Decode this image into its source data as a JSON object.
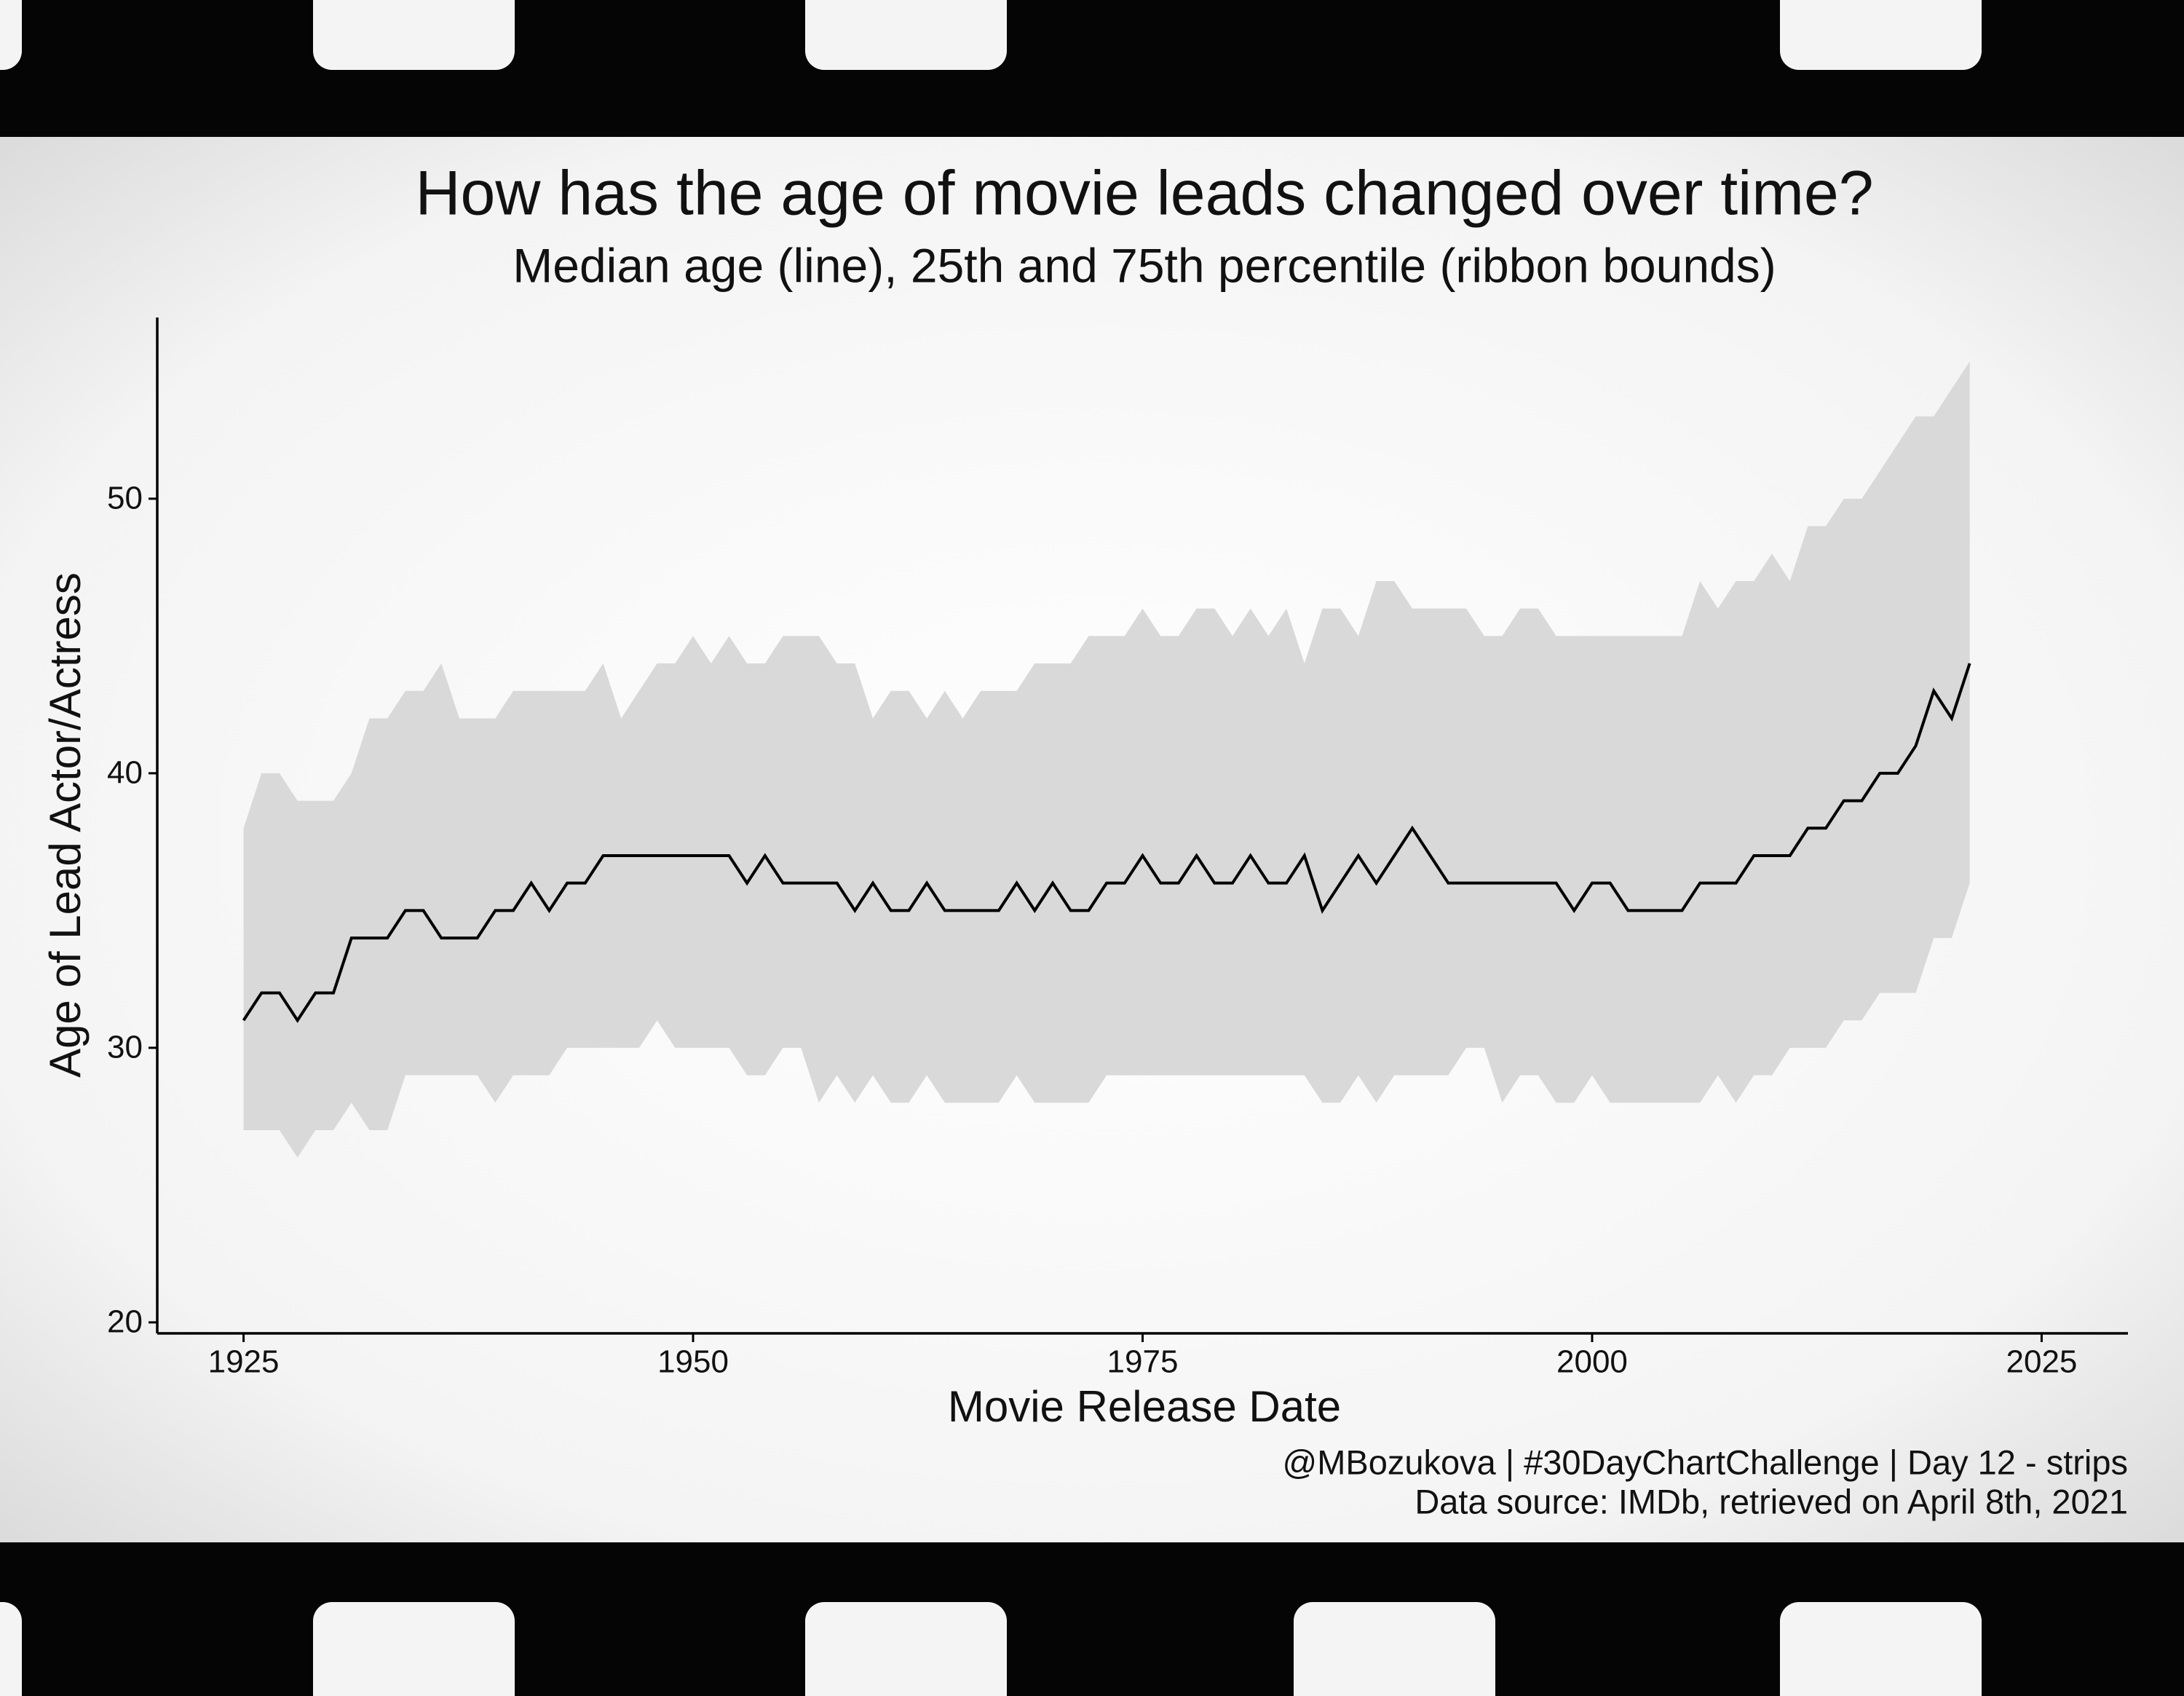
{
  "chart_data": {
    "type": "line",
    "title": "How has the age of movie leads changed over time?",
    "subtitle": "Median age (line), 25th and 75th percentile (ribbon bounds)",
    "x_label": "Movie Release Date",
    "y_label": "Age of Lead Actor/Actress",
    "caption": [
      "@MBozukova | #30DayChartChallenge | Day 12 - strips",
      "Data source: IMDb, retrieved on April 8th, 2021"
    ],
    "x": [
      1925,
      1926,
      1927,
      1928,
      1929,
      1930,
      1931,
      1932,
      1933,
      1934,
      1935,
      1936,
      1937,
      1938,
      1939,
      1940,
      1941,
      1942,
      1943,
      1944,
      1945,
      1946,
      1947,
      1948,
      1949,
      1950,
      1951,
      1952,
      1953,
      1954,
      1955,
      1956,
      1957,
      1958,
      1959,
      1960,
      1961,
      1962,
      1963,
      1964,
      1965,
      1966,
      1967,
      1968,
      1969,
      1970,
      1971,
      1972,
      1973,
      1974,
      1975,
      1976,
      1977,
      1978,
      1979,
      1980,
      1981,
      1982,
      1983,
      1984,
      1985,
      1986,
      1987,
      1988,
      1989,
      1990,
      1991,
      1992,
      1993,
      1994,
      1995,
      1996,
      1997,
      1998,
      1999,
      2000,
      2001,
      2002,
      2003,
      2004,
      2005,
      2006,
      2007,
      2008,
      2009,
      2010,
      2011,
      2012,
      2013,
      2014,
      2015,
      2016,
      2017,
      2018,
      2019,
      2020,
      2021
    ],
    "values": [
      31,
      32,
      32,
      31,
      32,
      32,
      34,
      34,
      34,
      35,
      35,
      34,
      34,
      34,
      35,
      35,
      36,
      35,
      36,
      36,
      37,
      37,
      37,
      37,
      37,
      37,
      37,
      37,
      36,
      37,
      36,
      36,
      36,
      36,
      35,
      36,
      35,
      35,
      36,
      35,
      35,
      35,
      35,
      36,
      35,
      36,
      35,
      35,
      36,
      36,
      37,
      36,
      36,
      37,
      36,
      36,
      37,
      36,
      36,
      37,
      35,
      36,
      37,
      36,
      37,
      38,
      37,
      36,
      36,
      36,
      36,
      36,
      36,
      36,
      35,
      36,
      36,
      35,
      35,
      35,
      35,
      36,
      36,
      36,
      37,
      37,
      37,
      38,
      38,
      39,
      39,
      40,
      40,
      41,
      43,
      42,
      44
    ],
    "upper": [
      38,
      40,
      40,
      39,
      39,
      39,
      40,
      42,
      42,
      43,
      43,
      44,
      42,
      42,
      42,
      43,
      43,
      43,
      43,
      43,
      44,
      42,
      43,
      44,
      44,
      45,
      44,
      45,
      44,
      44,
      45,
      45,
      45,
      44,
      44,
      42,
      43,
      43,
      42,
      43,
      42,
      43,
      43,
      43,
      44,
      44,
      44,
      45,
      45,
      45,
      46,
      45,
      45,
      46,
      46,
      45,
      46,
      45,
      46,
      44,
      46,
      46,
      45,
      47,
      47,
      46,
      46,
      46,
      46,
      45,
      45,
      46,
      46,
      45,
      45,
      45,
      45,
      45,
      45,
      45,
      45,
      47,
      46,
      47,
      47,
      48,
      47,
      49,
      49,
      50,
      50,
      51,
      52,
      53,
      53,
      54,
      55
    ],
    "lower": [
      27,
      27,
      27,
      26,
      27,
      27,
      28,
      27,
      27,
      29,
      29,
      29,
      29,
      29,
      28,
      29,
      29,
      29,
      30,
      30,
      30,
      30,
      30,
      31,
      30,
      30,
      30,
      30,
      29,
      29,
      30,
      30,
      28,
      29,
      28,
      29,
      28,
      28,
      29,
      28,
      28,
      28,
      28,
      29,
      28,
      28,
      28,
      28,
      29,
      29,
      29,
      29,
      29,
      29,
      29,
      29,
      29,
      29,
      29,
      29,
      28,
      28,
      29,
      28,
      29,
      29,
      29,
      29,
      30,
      30,
      28,
      29,
      29,
      28,
      28,
      29,
      28,
      28,
      28,
      28,
      28,
      28,
      29,
      28,
      29,
      29,
      30,
      30,
      30,
      31,
      31,
      32,
      32,
      32,
      34,
      34,
      36
    ],
    "color": "#000000",
    "ribbon_color": "#d9d9d9",
    "xlim": [
      1920.2,
      2029.8
    ],
    "ylim": [
      19.6,
      56.6
    ],
    "xticks": [
      1925,
      1950,
      1975,
      2000,
      2025
    ],
    "yticks": [
      20,
      30,
      40,
      50
    ],
    "grid": false
  }
}
